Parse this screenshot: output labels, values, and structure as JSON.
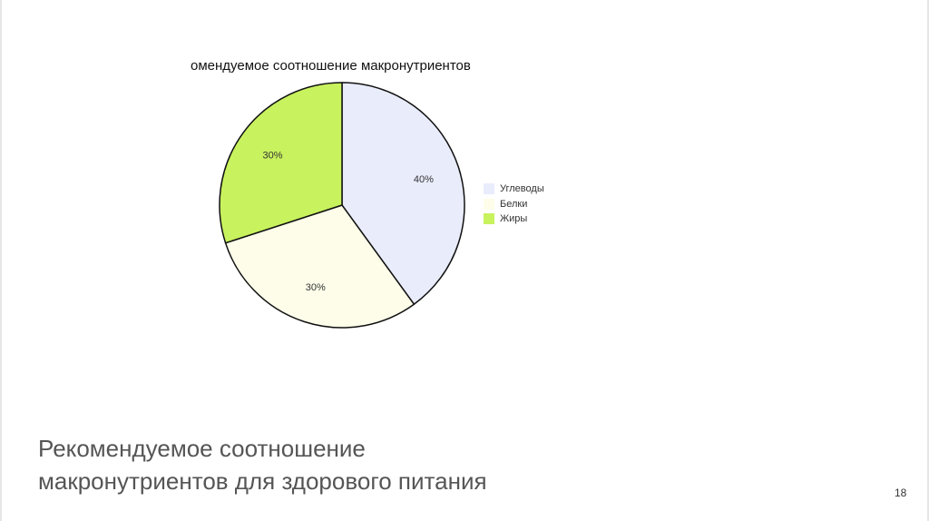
{
  "slide": {
    "title_line1": "Рекомендуемое соотношение",
    "title_line2": "макронутриентов для здорового питания",
    "page_number": "18"
  },
  "chart_data": {
    "type": "pie",
    "title": "омендуемое соотношение макронутриентов",
    "slices": [
      {
        "name": "Углеводы",
        "value": 40,
        "label": "40%",
        "color": "#e9ecfb"
      },
      {
        "name": "Белки",
        "value": 30,
        "label": "30%",
        "color": "#fdfde9"
      },
      {
        "name": "Жиры",
        "value": 30,
        "label": "30%",
        "color": "#c8f25e"
      }
    ],
    "legend_position": "right"
  }
}
